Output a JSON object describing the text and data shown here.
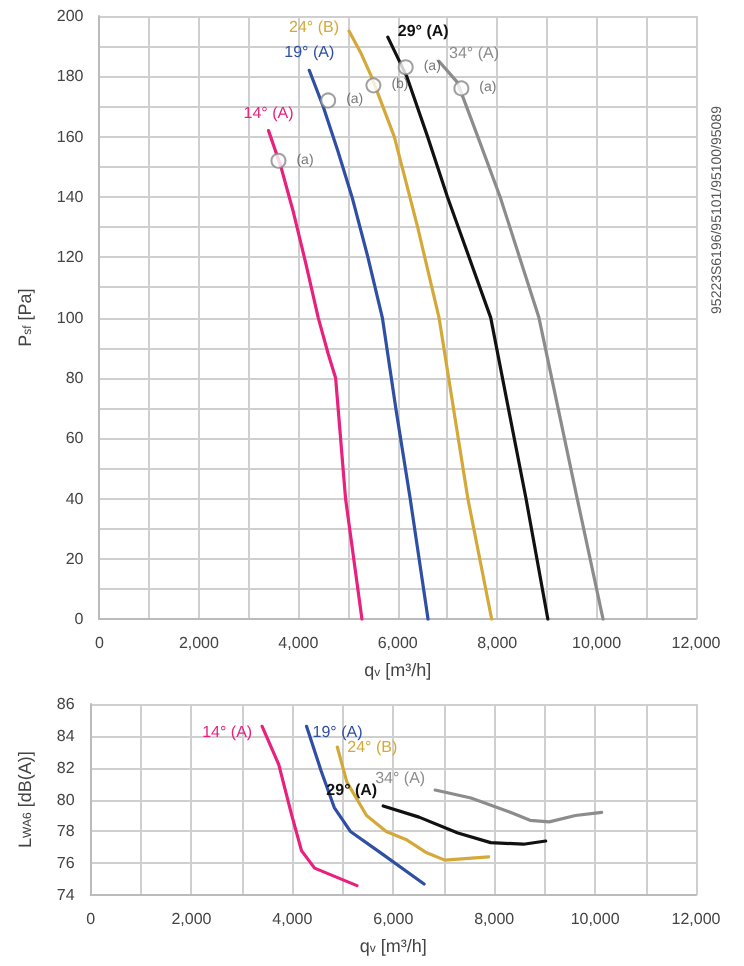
{
  "chart_data": [
    {
      "type": "line",
      "xlabel": "q$_{v}$ [m³/h]",
      "ylabel": "P$_{sf}$ [Pa]",
      "xlim": [
        0,
        12000
      ],
      "ylim": [
        0,
        200
      ],
      "xticks": [
        0,
        {
          "value": 1000,
          "label": null
        },
        {
          "value": 2000,
          "label": "2,000"
        },
        {
          "value": 3000,
          "label": null
        },
        {
          "value": 4000,
          "label": "4,000"
        },
        {
          "value": 5000,
          "label": null
        },
        {
          "value": 6000,
          "label": "6,000"
        },
        {
          "value": 7000,
          "label": null
        },
        {
          "value": 8000,
          "label": "8,000"
        },
        {
          "value": 9000,
          "label": null
        },
        {
          "value": 10000,
          "label": "10,000"
        },
        {
          "value": 11000,
          "label": null
        },
        {
          "value": 12000,
          "label": "12,000"
        }
      ],
      "yticks": [
        0,
        {
          "value": 10,
          "label": null
        },
        20,
        {
          "value": 30,
          "label": null
        },
        40,
        {
          "value": 50,
          "label": null
        },
        60,
        {
          "value": 70,
          "label": null
        },
        80,
        {
          "value": 90,
          "label": null
        },
        100,
        {
          "value": 110,
          "label": null
        },
        120,
        {
          "value": 130,
          "label": null
        },
        140,
        {
          "value": 150,
          "label": null
        },
        160,
        {
          "value": 170,
          "label": null
        },
        180,
        {
          "value": 190,
          "label": null
        },
        200
      ],
      "grid": true,
      "legend": false,
      "marker": "none",
      "line_style": "solid",
      "series": [
        {
          "name": "14° (A)",
          "color": "#e8207e",
          "x": [
            3400,
            3650,
            3900,
            4150,
            4400,
            4600,
            4750,
            4950,
            5280
          ],
          "values": [
            162,
            150,
            135,
            118,
            100,
            88,
            80,
            40,
            0
          ]
        },
        {
          "name": "19° (A)",
          "color": "#2e4fa3",
          "x": [
            4220,
            4500,
            4800,
            5080,
            5400,
            5690,
            5960,
            6250,
            6610
          ],
          "values": [
            182,
            170,
            155,
            140,
            120,
            100,
            70,
            40,
            0
          ]
        },
        {
          "name": "24° (B)",
          "color": "#d4a93a",
          "x": [
            5020,
            5250,
            5470,
            5930,
            6400,
            6830,
            7410,
            7890
          ],
          "values": [
            195,
            188,
            180,
            160,
            130,
            100,
            40,
            0
          ]
        },
        {
          "name": "29° (A)",
          "color": "#111111",
          "x": [
            5800,
            6180,
            6600,
            7000,
            7870,
            8580,
            9020
          ],
          "values": [
            193,
            180,
            160,
            140,
            100,
            40,
            0
          ]
        },
        {
          "name": "34° (A)",
          "color": "#8c8c8c",
          "x": [
            6830,
            7200,
            7610,
            8060,
            8840,
            9610,
            10130
          ],
          "values": [
            185,
            178,
            160,
            140,
            100,
            40,
            0
          ]
        }
      ],
      "annotations": [
        {
          "text": "(a)",
          "x": 3600,
          "y": 152
        },
        {
          "text": "(a)",
          "x": 4600,
          "y": 172
        },
        {
          "text": "(b)",
          "x": 5510,
          "y": 177
        },
        {
          "text": "(a)",
          "x": 6160,
          "y": 183
        },
        {
          "text": "(a)",
          "x": 7280,
          "y": 176
        },
        "95223S6196/95101/95100/95089"
      ]
    },
    {
      "type": "line",
      "xlabel": "q$_{v}$ [m³/h]",
      "ylabel": "L$_{WA6}$ [dB(A)]",
      "xlim": [
        0,
        12000
      ],
      "ylim": [
        74,
        86
      ],
      "xticks": [
        0,
        {
          "value": 1000,
          "label": null
        },
        {
          "value": 2000,
          "label": "2,000"
        },
        {
          "value": 3000,
          "label": null
        },
        {
          "value": 4000,
          "label": "4,000"
        },
        {
          "value": 5000,
          "label": null
        },
        {
          "value": 6000,
          "label": "6,000"
        },
        {
          "value": 7000,
          "label": null
        },
        {
          "value": 8000,
          "label": "8,000"
        },
        {
          "value": 9000,
          "label": null
        },
        {
          "value": 10000,
          "label": "10,000"
        },
        {
          "value": 11000,
          "label": null
        },
        {
          "value": 12000,
          "label": "12,000"
        }
      ],
      "yticks": [
        74,
        76,
        78,
        80,
        82,
        84,
        86
      ],
      "grid": true,
      "legend": false,
      "marker": "none",
      "line_style": "solid",
      "series": [
        {
          "name": "14° (A)",
          "color": "#e8207e",
          "x": [
            3400,
            3730,
            3980,
            4180,
            4440,
            5280
          ],
          "values": [
            84.6,
            82.2,
            79.1,
            76.8,
            75.7,
            74.6
          ]
        },
        {
          "name": "19° (A)",
          "color": "#2e4fa3",
          "x": [
            4280,
            4570,
            4830,
            5150,
            5730,
            6610
          ],
          "values": [
            84.6,
            81.8,
            79.5,
            78.0,
            76.7,
            74.7
          ]
        },
        {
          "name": "24° (B)",
          "color": "#d4a93a",
          "x": [
            4890,
            5080,
            5470,
            5860,
            6250,
            6640,
            7020,
            7890
          ],
          "values": [
            83.3,
            81.1,
            79.0,
            78.0,
            77.5,
            76.7,
            76.2,
            76.4
          ]
        },
        {
          "name": "29° (A)",
          "color": "#111111",
          "x": [
            5800,
            6510,
            7280,
            7930,
            8580,
            9020
          ],
          "values": [
            79.6,
            78.9,
            77.9,
            77.3,
            77.2,
            77.4
          ]
        },
        {
          "name": "34° (A)",
          "color": "#8c8c8c",
          "x": [
            6830,
            7540,
            8320,
            8710,
            9090,
            9610,
            10130
          ],
          "values": [
            80.6,
            80.1,
            79.2,
            78.7,
            78.6,
            79.0,
            79.2
          ]
        }
      ]
    }
  ]
}
